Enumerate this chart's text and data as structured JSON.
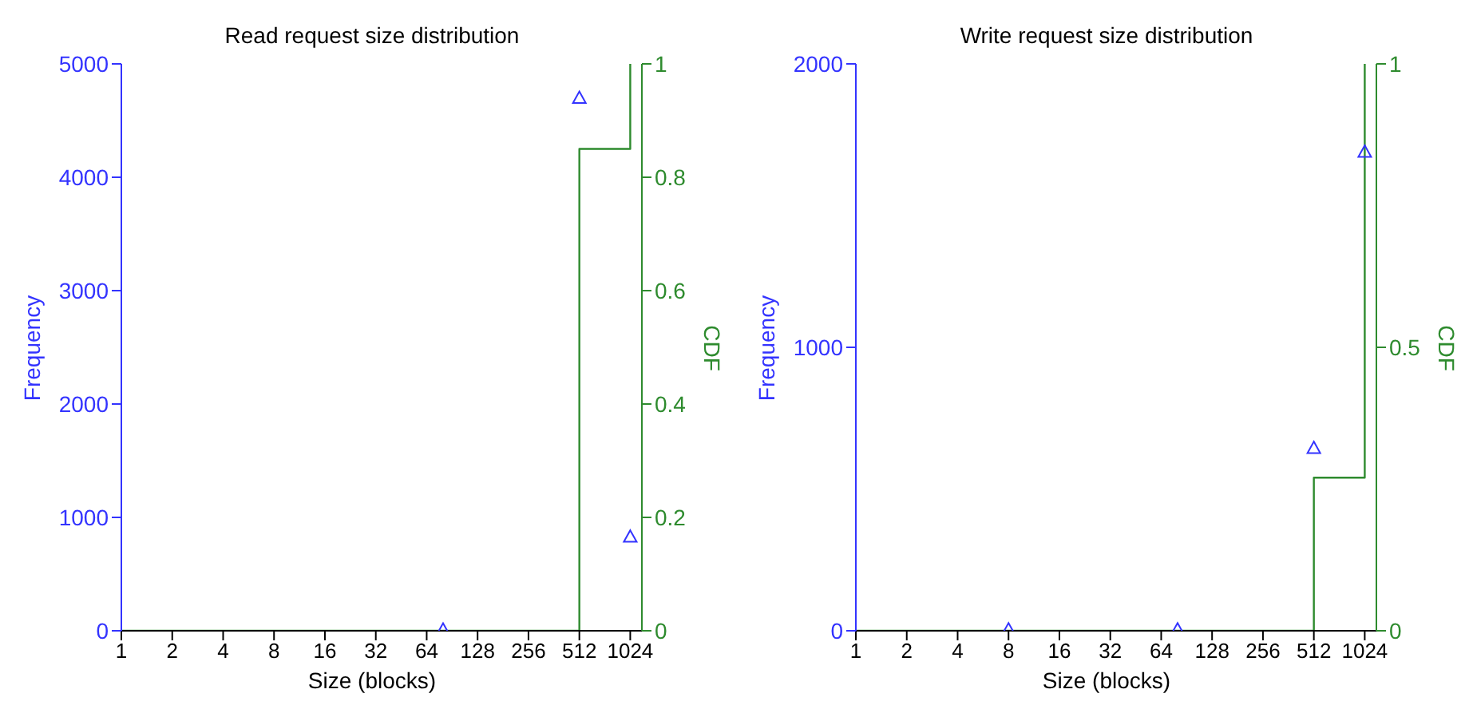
{
  "chart_data": [
    {
      "type": "scatter",
      "title": "Read request size distribution",
      "xlabel": "Size (blocks)",
      "ylabel": "Frequency",
      "y2label": "CDF",
      "log": "x",
      "xlim": [
        1,
        1200
      ],
      "xticks": [
        1,
        2,
        4,
        8,
        16,
        32,
        64,
        128,
        256,
        512,
        1024
      ],
      "ylim": [
        0,
        5000
      ],
      "yticks": [
        0,
        1000,
        2000,
        3000,
        4000,
        5000
      ],
      "y2lim": [
        0,
        1
      ],
      "y2ticks": [
        0,
        0.2,
        0.4,
        0.6,
        0.8,
        1
      ],
      "series": [
        {
          "color": "#3333ff",
          "marker": "triangle",
          "x": [
            80,
            512,
            1024
          ],
          "values": [
            10,
            4700,
            830
          ]
        },
        {
          "type": "step",
          "axis": "y2",
          "color": "#2e8b2e",
          "x": [
            1,
            512,
            1024
          ],
          "values": [
            0,
            0.85,
            1
          ]
        }
      ]
    },
    {
      "type": "scatter",
      "title": "Write request size distribution",
      "xlabel": "Size (blocks)",
      "ylabel": "Frequency",
      "y2label": "CDF",
      "log": "x",
      "xlim": [
        1,
        1200
      ],
      "xticks": [
        1,
        2,
        4,
        8,
        16,
        32,
        64,
        128,
        256,
        512,
        1024
      ],
      "ylim": [
        0,
        2000
      ],
      "yticks": [
        0,
        1000,
        2000
      ],
      "y2lim": [
        0,
        1
      ],
      "y2ticks": [
        0,
        0.5,
        1
      ],
      "series": [
        {
          "color": "#3333ff",
          "marker": "triangle",
          "x": [
            8,
            80,
            512,
            1024
          ],
          "values": [
            5,
            5,
            645,
            1690
          ]
        },
        {
          "type": "step",
          "axis": "y2",
          "color": "#2e8b2e",
          "x": [
            1,
            512,
            1024
          ],
          "values": [
            0,
            0.27,
            1
          ]
        }
      ]
    }
  ]
}
